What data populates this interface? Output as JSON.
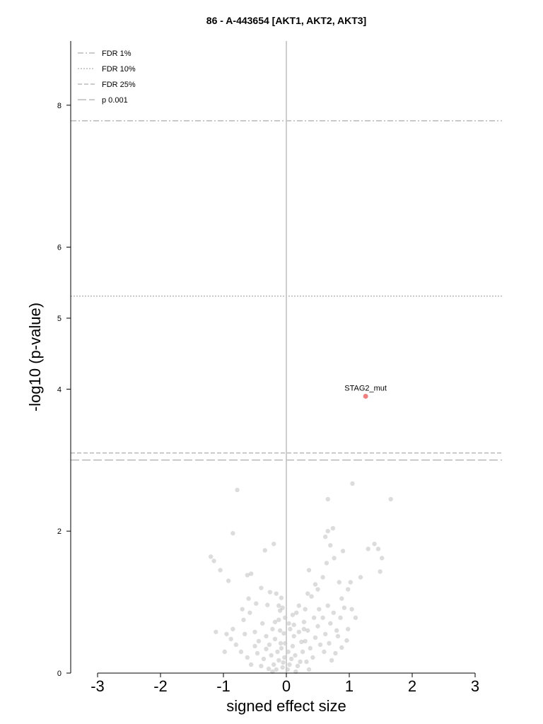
{
  "chart_data": {
    "type": "scatter",
    "title": "86 - A-443654 [AKT1, AKT2, AKT3]",
    "xlabel": "signed effect size",
    "ylabel": "-log10 (p-value)",
    "xlim": [
      -3.4,
      3.4
    ],
    "ylim": [
      0,
      8.9
    ],
    "xticks": [
      "-3",
      "-2",
      "-1",
      "0",
      "1",
      "2",
      "3"
    ],
    "xtick_values": [
      -3,
      -2,
      -1,
      0,
      1,
      2,
      3
    ],
    "yticks": [
      "0",
      "2",
      "4",
      "5",
      "6",
      "8"
    ],
    "ytick_values": [
      0,
      2,
      4,
      5,
      6,
      8
    ],
    "grid": false,
    "legend_position": "top-left",
    "thresholds": [
      {
        "label": "FDR 1%",
        "y": 7.78,
        "dash": "8,3,2,3"
      },
      {
        "label": "FDR 10%",
        "y": 5.31,
        "dash": "2,2"
      },
      {
        "label": "FDR 25%",
        "y": 3.1,
        "dash": "6,3"
      },
      {
        "label": "p 0.001",
        "y": 3.0,
        "dash": "12,4"
      }
    ],
    "highlight": {
      "label": "STAG2_mut",
      "x": 1.26,
      "y": 3.9,
      "color": "#f08080"
    },
    "points": [
      [
        -0.78,
        2.58
      ],
      [
        -0.85,
        1.97
      ],
      [
        -0.34,
        1.73
      ],
      [
        -0.2,
        1.82
      ],
      [
        -0.4,
        1.2
      ],
      [
        -0.6,
        1.05
      ],
      [
        -0.7,
        0.9
      ],
      [
        -1.2,
        1.64
      ],
      [
        -1.15,
        1.58
      ],
      [
        -1.05,
        1.45
      ],
      [
        -1.12,
        0.58
      ],
      [
        -0.92,
        1.3
      ],
      [
        -0.56,
        1.4
      ],
      [
        -0.62,
        1.38
      ],
      [
        -0.48,
        0.98
      ],
      [
        -0.16,
        1.12
      ],
      [
        -0.26,
        1.14
      ],
      [
        -0.3,
        0.96
      ],
      [
        -0.12,
        0.95
      ],
      [
        -0.08,
        1.06
      ],
      [
        -0.02,
        0.78
      ],
      [
        -0.1,
        0.88
      ],
      [
        -0.22,
        0.62
      ],
      [
        -0.38,
        0.7
      ],
      [
        -0.5,
        0.58
      ],
      [
        -0.66,
        0.55
      ],
      [
        -0.85,
        0.62
      ],
      [
        -0.95,
        0.55
      ],
      [
        -0.44,
        0.45
      ],
      [
        -0.32,
        0.52
      ],
      [
        -0.27,
        0.4
      ],
      [
        -0.18,
        0.48
      ],
      [
        -0.09,
        0.42
      ],
      [
        -0.04,
        0.56
      ],
      [
        -0.14,
        0.3
      ],
      [
        -0.24,
        0.25
      ],
      [
        -0.36,
        0.2
      ],
      [
        -0.46,
        0.28
      ],
      [
        -0.56,
        0.12
      ],
      [
        -0.2,
        0.12
      ],
      [
        -0.12,
        0.18
      ],
      [
        -0.06,
        0.08
      ],
      [
        -0.03,
        0.22
      ],
      [
        -0.16,
        0.05
      ],
      [
        -0.28,
        0.06
      ],
      [
        -0.08,
        0.35
      ],
      [
        -0.02,
        0.42
      ],
      [
        -0.05,
        0.15
      ],
      [
        -0.1,
        0.6
      ],
      [
        -0.18,
        0.72
      ],
      [
        0.02,
        0.05
      ],
      [
        0.05,
        0.12
      ],
      [
        0.08,
        0.2
      ],
      [
        0.03,
        0.3
      ],
      [
        0.1,
        0.38
      ],
      [
        0.14,
        0.25
      ],
      [
        0.18,
        0.1
      ],
      [
        0.22,
        0.16
      ],
      [
        0.26,
        0.3
      ],
      [
        0.3,
        0.45
      ],
      [
        0.12,
        0.52
      ],
      [
        0.06,
        0.62
      ],
      [
        0.2,
        0.58
      ],
      [
        0.28,
        0.72
      ],
      [
        0.34,
        0.6
      ],
      [
        0.38,
        0.35
      ],
      [
        0.42,
        0.22
      ],
      [
        0.46,
        0.5
      ],
      [
        0.5,
        0.66
      ],
      [
        0.54,
        0.4
      ],
      [
        0.58,
        0.78
      ],
      [
        0.62,
        0.55
      ],
      [
        0.66,
        0.95
      ],
      [
        0.7,
        0.7
      ],
      [
        0.75,
        0.85
      ],
      [
        0.8,
        0.6
      ],
      [
        0.86,
        0.78
      ],
      [
        0.92,
        0.92
      ],
      [
        0.98,
        0.62
      ],
      [
        1.04,
        0.9
      ],
      [
        0.16,
        0.85
      ],
      [
        0.3,
        0.9
      ],
      [
        0.4,
        1.08
      ],
      [
        0.5,
        1.18
      ],
      [
        0.58,
        1.35
      ],
      [
        0.64,
        1.55
      ],
      [
        0.7,
        1.8
      ],
      [
        0.76,
        1.62
      ],
      [
        0.84,
        1.28
      ],
      [
        0.9,
        1.72
      ],
      [
        0.34,
        1.12
      ],
      [
        0.36,
        1.45
      ],
      [
        0.46,
        1.25
      ],
      [
        0.62,
        1.92
      ],
      [
        0.66,
        2.0
      ],
      [
        0.74,
        2.04
      ],
      [
        1.05,
        2.67
      ],
      [
        0.66,
        2.45
      ],
      [
        1.66,
        2.45
      ],
      [
        1.4,
        1.82
      ],
      [
        1.46,
        1.75
      ],
      [
        1.49,
        1.43
      ],
      [
        1.52,
        1.62
      ],
      [
        1.3,
        1.75
      ],
      [
        1.18,
        1.35
      ],
      [
        1.02,
        1.28
      ],
      [
        0.98,
        1.18
      ],
      [
        0.88,
        1.05
      ],
      [
        1.1,
        0.78
      ],
      [
        0.82,
        0.52
      ],
      [
        0.04,
        0.7
      ],
      [
        0.1,
        0.82
      ],
      [
        -0.06,
        0.92
      ],
      [
        -0.12,
        0.75
      ],
      [
        0.2,
        0.95
      ],
      [
        0.24,
        0.44
      ],
      [
        0.32,
        0.16
      ],
      [
        0.36,
        0.05
      ],
      [
        0.15,
        0.02
      ],
      [
        -0.22,
        0.02
      ],
      [
        -0.32,
        0.34
      ],
      [
        -0.4,
        0.1
      ],
      [
        -0.5,
        0.38
      ],
      [
        -0.62,
        0.22
      ],
      [
        -0.72,
        0.3
      ],
      [
        -0.8,
        0.4
      ],
      [
        -0.88,
        0.48
      ],
      [
        -0.98,
        0.3
      ],
      [
        -0.68,
        0.75
      ],
      [
        -0.58,
        0.85
      ],
      [
        0.44,
        0.78
      ],
      [
        0.52,
        0.9
      ],
      [
        0.6,
        0.3
      ],
      [
        0.68,
        0.42
      ],
      [
        0.72,
        0.18
      ],
      [
        0.78,
        0.28
      ],
      [
        0.88,
        0.36
      ],
      [
        0.96,
        0.46
      ],
      [
        0.28,
        0.62
      ],
      [
        0.12,
        0.68
      ]
    ]
  }
}
